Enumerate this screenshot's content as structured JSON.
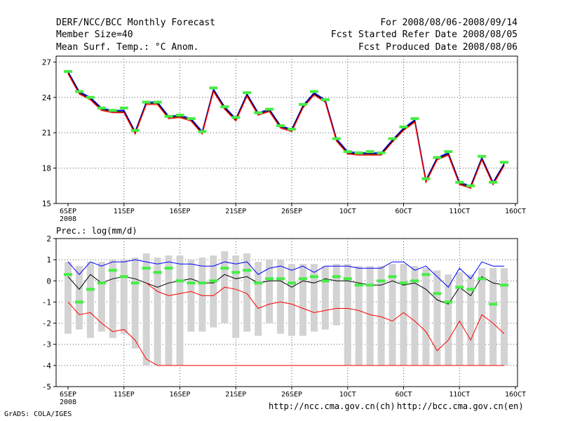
{
  "header": {
    "title": "DERF/NCC/BCC Monthly Forecast",
    "member_size": "Member Size=40",
    "variable": "Mean Surf. Temp.: °C Anom.",
    "period": "For 2008/08/06-2008/09/14",
    "started": "Fcst Started Refer Date 2008/08/05",
    "produced": "Fcst Produced Date 2008/08/06"
  },
  "footer": {
    "grads": "GrADS: COLA/IGES",
    "url_ncc": "http://ncc.cma.gov.cn(ch)",
    "url_bcc": "http://bcc.cma.gov.cn(en)"
  },
  "colors": {
    "ensemble_mean": "#000000",
    "upper": "#0000ff",
    "lower": "#ff0000",
    "marker": "#44ee44",
    "bar": "#d3d3d3",
    "grid": "#555555"
  },
  "chart_data": [
    {
      "type": "line",
      "title": "Mean Surf. Temp.: °C Anom.",
      "ylim": [
        15,
        27.5
      ],
      "yticks": [
        15,
        18,
        21,
        24,
        27
      ],
      "x_ticks": [
        "6SEP",
        "11SEP",
        "16SEP",
        "21SEP",
        "26SEP",
        "1OCT",
        "6OCT",
        "11OCT",
        "16OCT"
      ],
      "x_sub": "2008",
      "grid": true,
      "series": [
        {
          "name": "upper",
          "values": [
            26.2,
            24.5,
            24.0,
            23.1,
            22.9,
            22.9,
            21.1,
            23.6,
            23.6,
            22.4,
            22.5,
            22.2,
            21.1,
            24.7,
            23.2,
            22.2,
            24.3,
            22.7,
            23.0,
            21.6,
            21.3,
            23.3,
            24.4,
            23.8,
            20.5,
            19.4,
            19.3,
            19.3,
            19.3,
            20.4,
            21.4,
            22.1,
            17.0,
            18.9,
            19.3,
            16.8,
            16.5,
            18.9,
            16.8,
            18.4
          ]
        },
        {
          "name": "mean",
          "values": [
            26.1,
            24.4,
            23.9,
            23.0,
            22.8,
            22.8,
            21.0,
            23.5,
            23.5,
            22.3,
            22.4,
            22.1,
            21.0,
            24.6,
            23.1,
            22.1,
            24.2,
            22.6,
            22.9,
            21.5,
            21.2,
            23.2,
            24.3,
            23.7,
            20.4,
            19.3,
            19.2,
            19.2,
            19.2,
            20.3,
            21.3,
            22.0,
            16.9,
            18.8,
            19.2,
            16.7,
            16.4,
            18.8,
            16.7,
            18.3
          ]
        },
        {
          "name": "lower",
          "values": [
            26.0,
            24.3,
            23.8,
            22.9,
            22.7,
            22.7,
            20.9,
            23.4,
            23.4,
            22.2,
            22.3,
            22.0,
            20.9,
            24.5,
            23.0,
            22.0,
            24.1,
            22.5,
            22.8,
            21.4,
            21.1,
            23.1,
            24.2,
            23.6,
            20.3,
            19.2,
            19.1,
            19.1,
            19.1,
            20.2,
            21.2,
            21.9,
            16.8,
            18.7,
            19.1,
            16.6,
            16.3,
            18.7,
            16.6,
            18.2
          ]
        },
        {
          "name": "markers",
          "values": [
            26.2,
            24.5,
            24.0,
            23.1,
            22.9,
            23.1,
            21.2,
            23.6,
            23.6,
            22.4,
            22.5,
            22.2,
            21.1,
            24.8,
            23.2,
            22.3,
            24.4,
            22.7,
            23.0,
            21.6,
            21.3,
            23.4,
            24.5,
            23.8,
            20.5,
            19.4,
            19.3,
            19.4,
            19.3,
            20.5,
            21.5,
            22.2,
            17.1,
            18.9,
            19.4,
            16.8,
            16.5,
            19.0,
            16.8,
            18.5
          ]
        }
      ]
    },
    {
      "type": "bar",
      "title": "Prec.: log(mm/d)",
      "ylim": [
        -5,
        2
      ],
      "yticks": [
        -5,
        -4,
        -3,
        -2,
        -1,
        0,
        1,
        2
      ],
      "x_ticks": [
        "6SEP",
        "11SEP",
        "16SEP",
        "21SEP",
        "26SEP",
        "1OCT",
        "6OCT",
        "11OCT",
        "16OCT"
      ],
      "x_sub": "2008",
      "grid": true,
      "bars": {
        "top": [
          0.9,
          0.7,
          0.9,
          0.9,
          1.0,
          1.0,
          1.1,
          1.3,
          1.1,
          1.2,
          1.2,
          1.0,
          1.1,
          1.2,
          1.4,
          1.2,
          1.3,
          0.9,
          1.0,
          1.0,
          0.8,
          0.8,
          0.8,
          0.7,
          0.8,
          0.8,
          0.7,
          0.7,
          0.7,
          0.8,
          0.8,
          0.7,
          0.6,
          0.5,
          0.3,
          0.4,
          0.3,
          0.6,
          0.6,
          0.6
        ],
        "bottom": [
          -2.5,
          -2.3,
          -2.7,
          -2.4,
          -2.7,
          -2.5,
          -3.2,
          -4.0,
          -4.0,
          -4.0,
          -4.0,
          -2.4,
          -2.4,
          -2.2,
          -2.0,
          -2.7,
          -2.4,
          -2.6,
          -2.0,
          -2.5,
          -2.6,
          -2.6,
          -2.4,
          -2.3,
          -2.1,
          -4.0,
          -4.0,
          -4.0,
          -4.0,
          -4.0,
          -4.0,
          -4.0,
          -4.0,
          -4.0,
          -4.0,
          -4.0,
          -4.0,
          -4.0,
          -4.0,
          -4.0
        ]
      },
      "series": [
        {
          "name": "upper",
          "values": [
            0.9,
            0.3,
            0.9,
            0.7,
            0.9,
            0.9,
            1.0,
            0.9,
            0.8,
            0.9,
            0.8,
            0.8,
            0.7,
            0.7,
            0.9,
            0.8,
            0.9,
            0.3,
            0.6,
            0.7,
            0.5,
            0.7,
            0.4,
            0.7,
            0.7,
            0.7,
            0.6,
            0.6,
            0.6,
            0.9,
            0.9,
            0.5,
            0.7,
            0.2,
            -0.3,
            0.6,
            0.1,
            0.9,
            0.7,
            0.7
          ]
        },
        {
          "name": "mean",
          "values": [
            0.2,
            -0.4,
            0.3,
            -0.1,
            0.1,
            0.2,
            0.1,
            -0.1,
            -0.3,
            -0.1,
            0.0,
            0.1,
            -0.1,
            -0.1,
            0.3,
            0.1,
            0.2,
            -0.1,
            0.0,
            0.0,
            -0.3,
            0.0,
            -0.1,
            0.1,
            0.0,
            0.0,
            -0.1,
            -0.2,
            -0.2,
            0.0,
            -0.2,
            -0.1,
            -0.4,
            -0.9,
            -1.1,
            -0.3,
            -0.7,
            0.2,
            -0.1,
            -0.2
          ]
        },
        {
          "name": "lower",
          "values": [
            -1.0,
            -1.6,
            -1.5,
            -2.0,
            -2.4,
            -2.3,
            -2.8,
            -3.7,
            -4.0,
            -4.0,
            -4.0,
            -4.0,
            -4.0,
            -4.0,
            -4.0,
            -4.0,
            -4.0,
            -4.0,
            -4.0,
            -4.0,
            -4.0,
            -4.0,
            -4.0,
            -4.0,
            -4.0,
            -4.0,
            -4.0,
            -4.0,
            -4.0,
            -4.0,
            -4.0,
            -4.0,
            -4.0,
            -4.0,
            -4.0,
            -4.0,
            -4.0,
            -4.0,
            -4.0,
            -4.0
          ]
        },
        {
          "name": "lower_alt",
          "values": [
            null,
            null,
            null,
            null,
            null,
            null,
            null,
            -0.1,
            -0.5,
            -0.7,
            -0.6,
            -0.5,
            -0.7,
            -0.7,
            -0.3,
            -0.4,
            -0.6,
            -1.3,
            -1.1,
            -1.0,
            -1.1,
            -1.3,
            -1.5,
            -1.4,
            -1.3,
            -1.3,
            -1.4,
            -1.6,
            -1.7,
            -1.9,
            -1.5,
            -1.9,
            -2.4,
            -3.3,
            -2.8,
            -1.9,
            -2.8,
            -1.6,
            -2.0,
            -2.5
          ]
        },
        {
          "name": "markers",
          "values": [
            0.3,
            -1.0,
            -0.4,
            -0.1,
            0.5,
            0.2,
            -0.1,
            0.6,
            0.4,
            0.6,
            0.0,
            -0.1,
            -0.1,
            0.0,
            0.6,
            0.4,
            0.5,
            -0.1,
            0.1,
            0.1,
            -0.1,
            0.1,
            0.2,
            0.0,
            0.2,
            0.1,
            -0.2,
            -0.2,
            0.0,
            0.2,
            -0.1,
            0.0,
            0.3,
            -0.6,
            -1.0,
            -0.3,
            -0.4,
            0.1,
            -1.1,
            -0.2
          ]
        }
      ]
    }
  ]
}
